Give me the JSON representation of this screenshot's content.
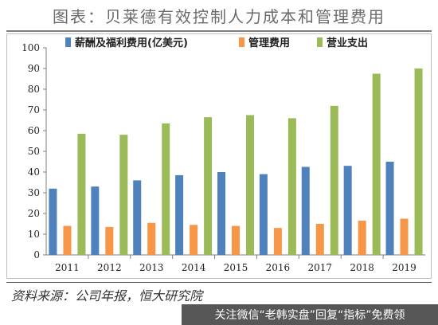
{
  "header": {
    "title": "图表：贝莱德有效控制人力成本和管理费用"
  },
  "footer": {
    "source": "资料来源：公司年报，恒大研究院",
    "watermark": "关注微信“老韩实盘”回复“指标”免费领"
  },
  "chart_data": {
    "type": "bar",
    "categories": [
      "2011",
      "2012",
      "2013",
      "2014",
      "2015",
      "2016",
      "2017",
      "2018",
      "2019"
    ],
    "series": [
      {
        "name": "薪酬及福利费用(亿美元)",
        "color": "#4f81bd",
        "values": [
          32,
          33,
          36,
          38.5,
          40,
          39,
          42.5,
          43,
          45
        ]
      },
      {
        "name": "管理费用",
        "color": "#f79646",
        "values": [
          14,
          13.5,
          15.5,
          14.5,
          14,
          13,
          15,
          16.5,
          17.5
        ]
      },
      {
        "name": "营业支出",
        "color": "#9bbb59",
        "values": [
          58.5,
          58,
          63.5,
          66.5,
          67.5,
          66,
          72,
          87.5,
          90
        ]
      }
    ],
    "yticks": [
      "0",
      "10",
      "20",
      "30",
      "40",
      "50",
      "60",
      "70",
      "80",
      "90",
      "100"
    ],
    "ylim": [
      0,
      100
    ],
    "legend": "top",
    "grid": false
  }
}
